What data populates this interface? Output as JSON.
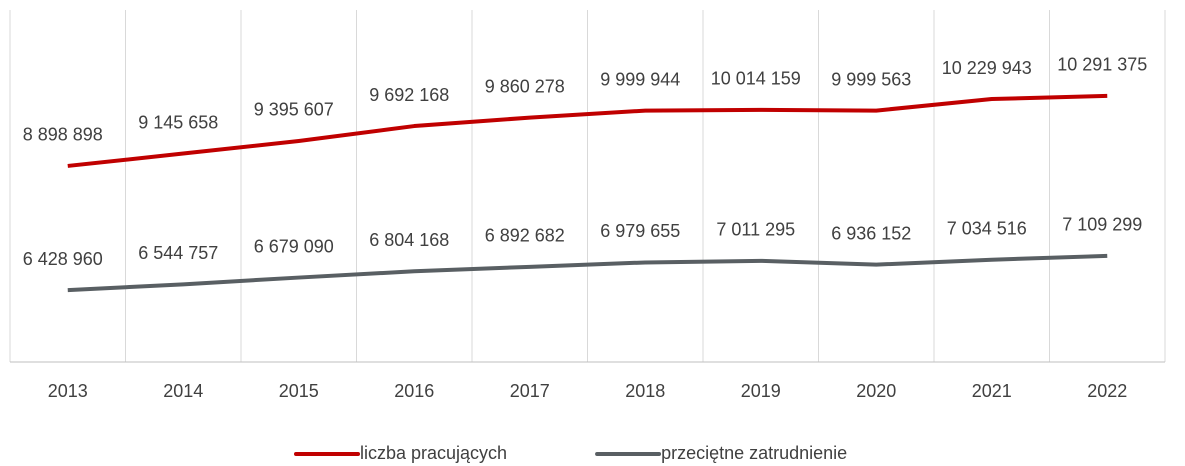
{
  "chart_data": {
    "type": "line",
    "categories": [
      "2013",
      "2014",
      "2015",
      "2016",
      "2017",
      "2018",
      "2019",
      "2020",
      "2021",
      "2022"
    ],
    "series": [
      {
        "name": "liczba pracujących",
        "color": "#c00000",
        "values": [
          8898898,
          9145658,
          9395607,
          9692168,
          9860278,
          9999944,
          10014159,
          9999563,
          10229943,
          10291375
        ],
        "value_labels": [
          "8 898 898",
          "9 145 658",
          "9 395 607",
          "9 692 168",
          "9 860 278",
          "9 999 944",
          "10 014 159",
          "9 999 563",
          "10 229 943",
          "10 291 375"
        ]
      },
      {
        "name": "przeciętne zatrudnienie",
        "color": "#595f63",
        "values": [
          6428960,
          6544757,
          6679090,
          6804168,
          6892682,
          6979655,
          7011295,
          6936152,
          7034516,
          7109299
        ],
        "value_labels": [
          "6 428 960",
          "6 544 757",
          "6 679 090",
          "6 804 168",
          "6 892 682",
          "6 979 655",
          "7 011 295",
          "6 936 152",
          "7 034 516",
          "7 109 299"
        ]
      }
    ],
    "ylim": [
      5000000,
      12000000
    ],
    "grid": true,
    "legend": "bottom"
  }
}
